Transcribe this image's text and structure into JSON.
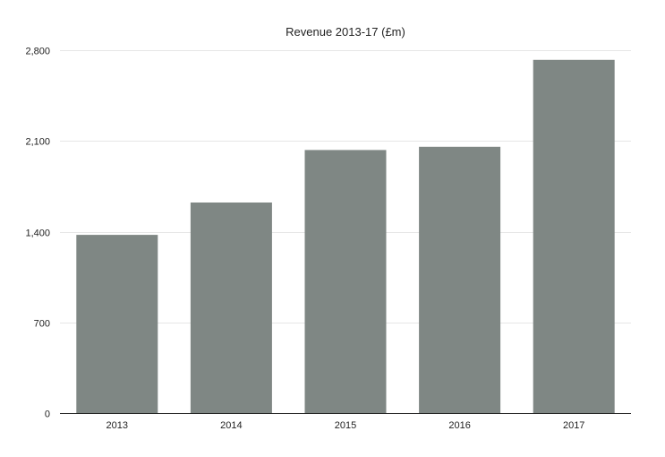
{
  "chart_data": {
    "type": "bar",
    "title": "Revenue 2013-17 (£m)",
    "xlabel": "",
    "ylabel": "",
    "categories": [
      "2013",
      "2014",
      "2015",
      "2016",
      "2017"
    ],
    "values": [
      1375,
      1625,
      2030,
      2055,
      2725
    ],
    "ylim": [
      0,
      2800
    ],
    "yticks": [
      0,
      700,
      1400,
      2100,
      2800
    ],
    "ytick_labels": [
      "0",
      "700",
      "1,400",
      "2,100",
      "2,800"
    ],
    "grid": true,
    "legend": "none",
    "bar_color": "#7f8784"
  }
}
